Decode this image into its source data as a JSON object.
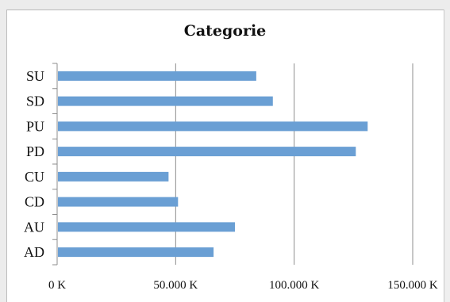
{
  "chart_data": {
    "type": "bar",
    "orientation": "horizontal",
    "title": "Categorie",
    "xlabel": "",
    "ylabel": "",
    "categories": [
      "SU",
      "SD",
      "PU",
      "PD",
      "CU",
      "CD",
      "AU",
      "AD"
    ],
    "values": [
      84000,
      91000,
      131000,
      126000,
      47000,
      51000,
      75000,
      66000
    ],
    "xlim": [
      0,
      150000
    ],
    "xticks": [
      0,
      50000,
      100000,
      150000
    ],
    "xtick_labels": [
      "0 K",
      "50.000 K",
      "100.000 K",
      "150.000 K"
    ],
    "grid": "vertical",
    "legend": "none",
    "bar_color": "#6a9fd4"
  }
}
